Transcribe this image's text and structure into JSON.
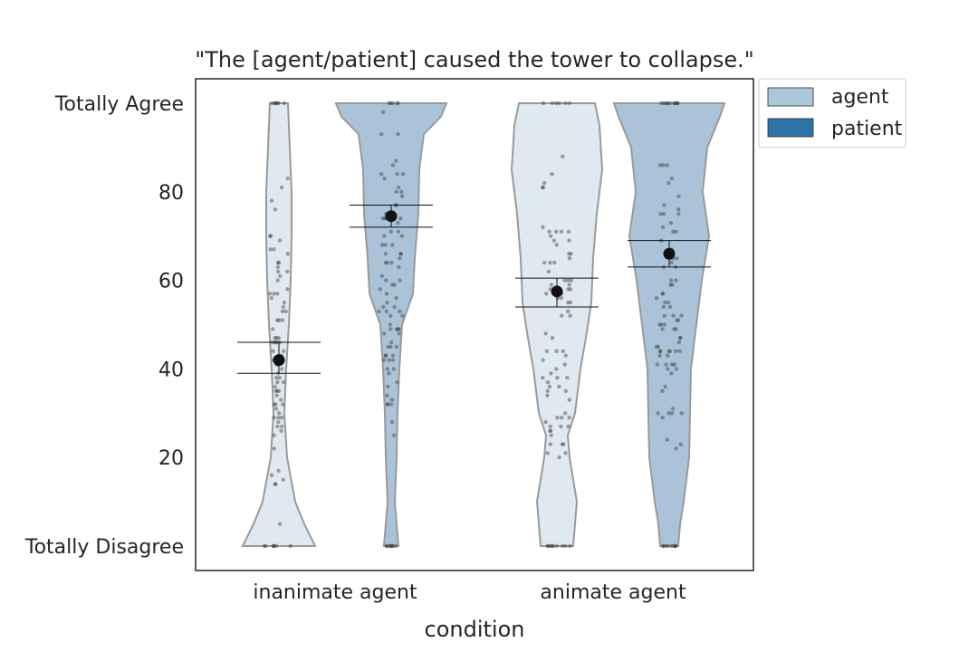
{
  "chart_data": {
    "type": "violin",
    "title": "\"The [agent/patient] caused the tower to collapse.\"",
    "xlabel": "condition",
    "ylabel": "",
    "ylim": [
      0,
      100
    ],
    "y_ticks": [
      {
        "value": 0,
        "label": "Totally Disagree"
      },
      {
        "value": 20,
        "label": "20"
      },
      {
        "value": 40,
        "label": "40"
      },
      {
        "value": 60,
        "label": "60"
      },
      {
        "value": 80,
        "label": "80"
      },
      {
        "value": 100,
        "label": "Totally Agree"
      }
    ],
    "categories": [
      "inanimate agent",
      "animate agent"
    ],
    "legend": {
      "placement": "outside-top-right",
      "entries": [
        "agent",
        "patient"
      ]
    },
    "series": [
      {
        "name": "agent",
        "color": "#abc9db",
        "violin_fill": "#dfe9f0",
        "means": [
          42,
          57.5
        ],
        "ci": [
          [
            39,
            46
          ],
          [
            54,
            60.5
          ]
        ]
      },
      {
        "name": "patient",
        "color": "#2f73a6",
        "violin_fill": "#abc3d8",
        "means": [
          74.5,
          66
        ],
        "ci": [
          [
            72,
            77
          ],
          [
            63,
            69
          ]
        ]
      }
    ],
    "grid": false
  }
}
